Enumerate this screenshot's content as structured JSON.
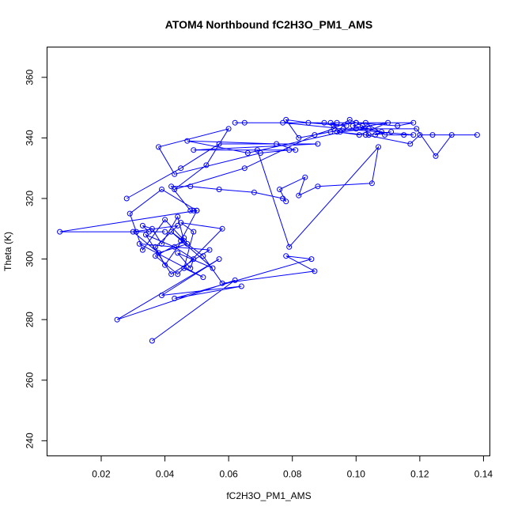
{
  "chart_data": {
    "type": "line",
    "title": "ATOM4 Northbound fC2H3O_PM1_AMS",
    "xlabel": "fC2H3O_PM1_AMS",
    "ylabel": "Theta (K)",
    "xlim": [
      0.003,
      0.142
    ],
    "ylim": [
      235,
      370
    ],
    "x_ticks": [
      0.02,
      0.04,
      0.06,
      0.08,
      0.1,
      0.12,
      0.14
    ],
    "y_ticks": [
      240,
      260,
      280,
      300,
      320,
      340,
      360
    ],
    "x_tick_labels": [
      "0.02",
      "0.04",
      "0.06",
      "0.08",
      "0.10",
      "0.12",
      "0.14"
    ],
    "y_tick_labels": [
      "240",
      "260",
      "280",
      "300",
      "320",
      "340",
      "360"
    ],
    "grid": false,
    "line_color": "#0000ff",
    "marker": "open-circle",
    "series": [
      {
        "x": [
          0.036,
          0.062,
          0.025,
          0.057,
          0.039,
          0.064,
          0.043,
          0.086,
          0.078,
          0.087,
          0.058,
          0.052,
          0.042,
          0.055,
          0.044,
          0.048,
          0.049,
          0.043,
          0.034,
          0.042,
          0.054,
          0.032,
          0.052,
          0.046,
          0.049,
          0.045,
          0.058,
          0.044,
          0.037,
          0.046,
          0.044,
          0.039,
          0.036,
          0.033,
          0.035,
          0.04,
          0.007,
          0.05,
          0.039,
          0.029,
          0.031,
          0.033,
          0.04,
          0.047,
          0.038,
          0.03,
          0.044,
          0.037,
          0.04,
          0.046,
          0.045,
          0.05,
          0.049,
          0.048,
          0.042,
          0.048,
          0.057,
          0.068,
          0.077,
          0.078,
          0.076,
          0.084,
          0.082,
          0.088,
          0.105,
          0.107,
          0.079,
          0.069,
          0.079,
          0.07,
          0.043,
          0.038,
          0.06,
          0.053,
          0.043,
          0.065,
          0.087,
          0.093,
          0.098,
          0.104,
          0.095,
          0.093,
          0.1,
          0.113,
          0.118,
          0.094,
          0.092,
          0.1,
          0.102,
          0.104,
          0.111,
          0.106,
          0.108,
          0.099,
          0.103,
          0.109,
          0.115,
          0.118,
          0.096,
          0.077,
          0.065,
          0.062,
          0.09,
          0.097,
          0.085,
          0.078,
          0.082,
          0.092,
          0.11,
          0.101,
          0.094,
          0.103,
          0.117,
          0.12,
          0.124,
          0.138,
          0.13,
          0.125,
          0.119,
          0.1,
          0.066,
          0.047,
          0.075,
          0.081,
          0.049,
          0.088,
          0.057,
          0.045,
          0.028
        ],
        "y": [
          273,
          293,
          280,
          300,
          288,
          291,
          287,
          300,
          301,
          296,
          292,
          301,
          309,
          297,
          302,
          297,
          300,
          304,
          308,
          295,
          303,
          305,
          294,
          297,
          309,
          312,
          310,
          295,
          301,
          306,
          314,
          305,
          310,
          311,
          309,
          309,
          309,
          316,
          323,
          315,
          309,
          303,
          313,
          305,
          302,
          309,
          311,
          304,
          298,
          307,
          306,
          316,
          316,
          316,
          324,
          324,
          323,
          322,
          320,
          319,
          323,
          327,
          321,
          324,
          325,
          337,
          304,
          336,
          336,
          335,
          328,
          337,
          343,
          331,
          323,
          330,
          341,
          343,
          346,
          343,
          342,
          344,
          345,
          344,
          345,
          345,
          345,
          345,
          344,
          341,
          342,
          341,
          342,
          344,
          345,
          341,
          341,
          341,
          343,
          345,
          345,
          345,
          345,
          344,
          345,
          346,
          340,
          342,
          345,
          341,
          342,
          341,
          338,
          341,
          341,
          341,
          341,
          334,
          343,
          343,
          335,
          339,
          338,
          336,
          336,
          338,
          338,
          330,
          320
        ]
      }
    ]
  }
}
